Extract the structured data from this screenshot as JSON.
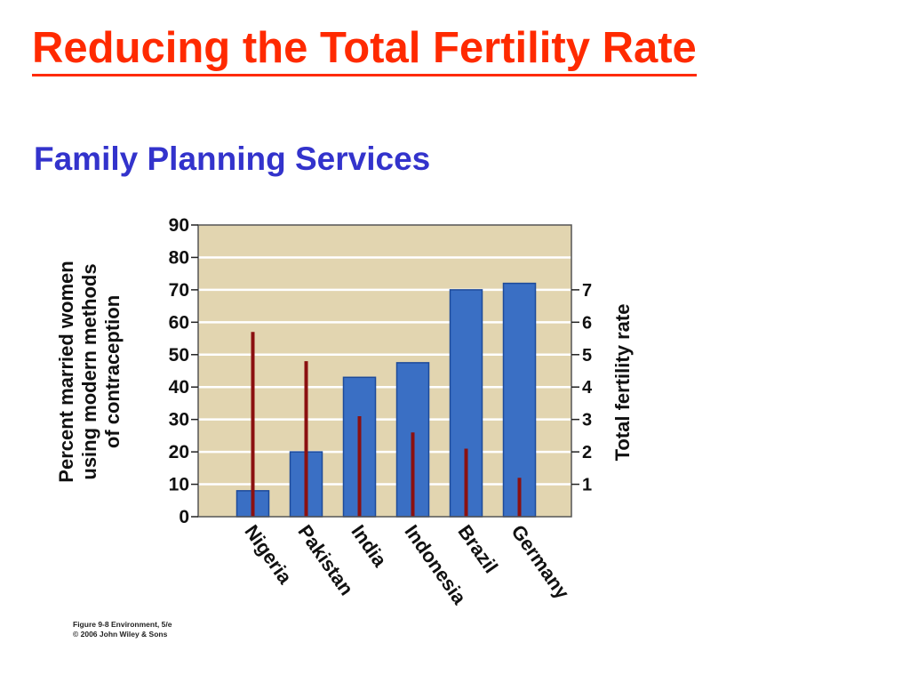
{
  "slide": {
    "title": "Reducing the Total Fertility Rate",
    "subtitle": "Family Planning Services"
  },
  "colors": {
    "title": "#ff2a00",
    "subtitle": "#3333cc",
    "plot_background": "#e2d5b0",
    "bar": "#3a6fc4",
    "bar_border": "#1d4a9a",
    "fertility_line": "#8b1010",
    "gridline": "#ffffff"
  },
  "chart_data": {
    "type": "bar",
    "categories": [
      "Nigeria",
      "Pakistan",
      "India",
      "Indonesia",
      "Brazil",
      "Germany"
    ],
    "series": [
      {
        "values": [
          8,
          20,
          43,
          47.5,
          70,
          72
        ]
      },
      {
        "values": [
          5.7,
          4.8,
          3.1,
          2.6,
          2.1,
          1.2
        ]
      }
    ],
    "ylabel_left": [
      "Percent married women",
      "using  modern methods",
      "of contraception"
    ],
    "ylabel_right": "Total fertility rate",
    "ylim_left": [
      0,
      90
    ],
    "yticks_left": [
      "0",
      "10",
      "20",
      "30",
      "40",
      "50",
      "60",
      "70",
      "80",
      "90"
    ],
    "ylim_right": [
      0,
      9
    ],
    "yticks_right": [
      "1",
      "2",
      "3",
      "4",
      "5",
      "6",
      "7"
    ],
    "grid": true,
    "legend": "none"
  },
  "credit": {
    "line1": "Figure 9-8  Environment, 5/e",
    "line2": "© 2006 John Wiley & Sons"
  }
}
